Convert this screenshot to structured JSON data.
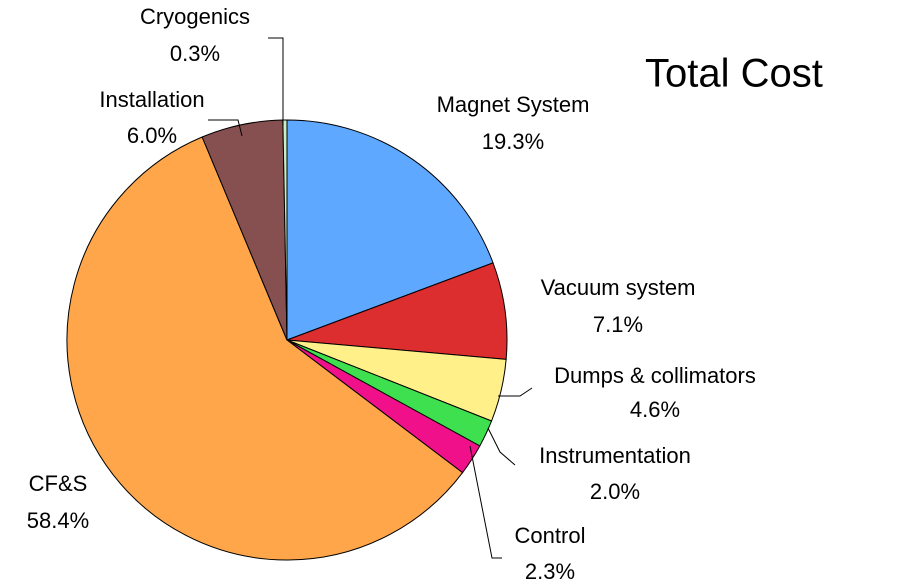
{
  "chart_data": {
    "type": "pie",
    "title": "Total Cost",
    "categories": [
      "Magnet System",
      "Vacuum system",
      "Dumps & collimators",
      "Instrumentation",
      "Control",
      "CF&S",
      "Installation",
      "Cryogenics"
    ],
    "values": [
      19.3,
      7.1,
      4.6,
      2.0,
      2.3,
      58.4,
      6.0,
      0.3
    ],
    "value_labels": [
      "19.3%",
      "7.1%",
      "4.6%",
      "2.0%",
      "2.3%",
      "58.4%",
      "6.0%",
      "0.3%"
    ],
    "colors": [
      "#5fa8ff",
      "#dc2e2e",
      "#fff08a",
      "#3fe04f",
      "#f0108a",
      "#ffa64a",
      "#85504f",
      "#c8f0c8"
    ]
  }
}
